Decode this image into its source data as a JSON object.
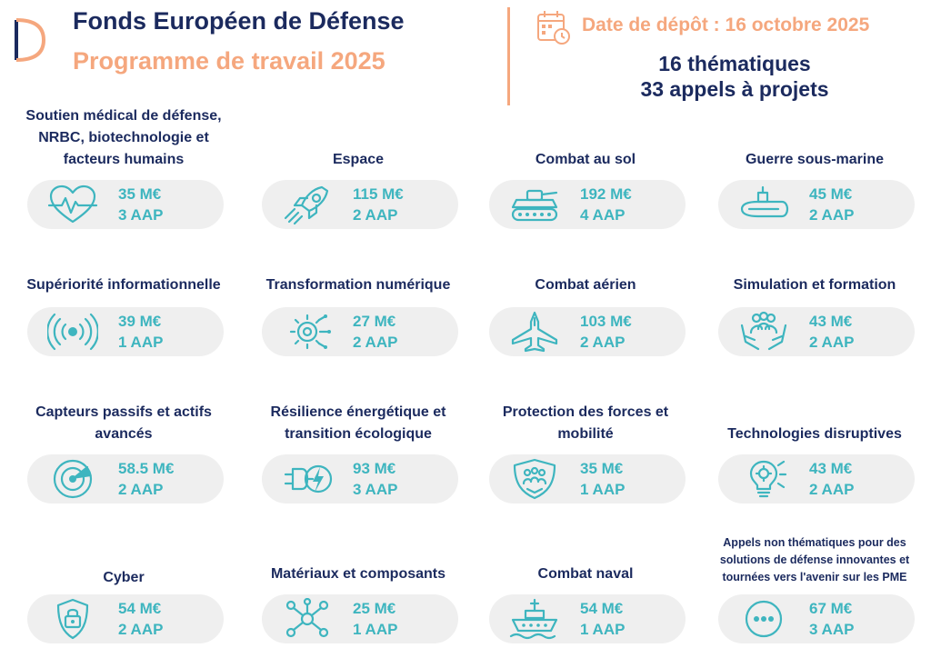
{
  "header": {
    "title": "Fonds Européen de Défense",
    "subtitle": "Programme de travail 2025",
    "date": "Date de dépôt : 16 octobre 2025",
    "thematics": "16 thématiques",
    "calls": "33 appels à projets"
  },
  "colors": {
    "navy": "#1b2a5e",
    "orange": "#f5a77e",
    "teal": "#3eb5bf",
    "pill": "#efefef"
  },
  "themes": [
    {
      "title": "Soutien médical de défense, NRBC, biotechnologie et facteurs humains",
      "amount": "35 M€",
      "calls": "3 AAP",
      "icon": "heart-pulse-icon"
    },
    {
      "title": "Espace",
      "amount": "115 M€",
      "calls": "2 AAP",
      "icon": "rocket-icon"
    },
    {
      "title": "Combat au sol",
      "amount": "192 M€",
      "calls": "4 AAP",
      "icon": "tank-icon"
    },
    {
      "title": "Guerre sous-marine",
      "amount": "45 M€",
      "calls": "2 AAP",
      "icon": "submarine-icon"
    },
    {
      "title": "Supériorité informationnelle",
      "amount": "39 M€",
      "calls": "1 AAP",
      "icon": "signal-broadcast-icon"
    },
    {
      "title": "Transformation numérique",
      "amount": "27 M€",
      "calls": "2 AAP",
      "icon": "digital-gear-icon"
    },
    {
      "title": "Combat aérien",
      "amount": "103 M€",
      "calls": "2 AAP",
      "icon": "fighter-jet-icon"
    },
    {
      "title": "Simulation et formation",
      "amount": "43 M€",
      "calls": "2 AAP",
      "icon": "people-hands-icon"
    },
    {
      "title": "Capteurs passifs et actifs avancés",
      "amount": "58.5 M€",
      "calls": "2 AAP",
      "icon": "radar-icon"
    },
    {
      "title": "Résilience énergétique et transition écologique",
      "amount": "93 M€",
      "calls": "3 AAP",
      "icon": "energy-plug-icon"
    },
    {
      "title": "Protection des forces et mobilité",
      "amount": "35 M€",
      "calls": "1 AAP",
      "icon": "shield-people-icon"
    },
    {
      "title": "Technologies disruptives",
      "amount": "43 M€",
      "calls": "2 AAP",
      "icon": "lightbulb-gear-icon"
    },
    {
      "title": "Cyber",
      "amount": "54 M€",
      "calls": "2 AAP",
      "icon": "cyber-lock-icon"
    },
    {
      "title": "Matériaux et composants",
      "amount": "25 M€",
      "calls": "1 AAP",
      "icon": "molecule-icon"
    },
    {
      "title": "Combat naval",
      "amount": "54 M€",
      "calls": "1 AAP",
      "icon": "warship-icon"
    },
    {
      "title": "Appels non thématiques pour des solutions de défense innovantes et tournées vers l'avenir sur les PME",
      "amount": "67 M€",
      "calls": "3 AAP",
      "icon": "more-dots-icon"
    }
  ]
}
